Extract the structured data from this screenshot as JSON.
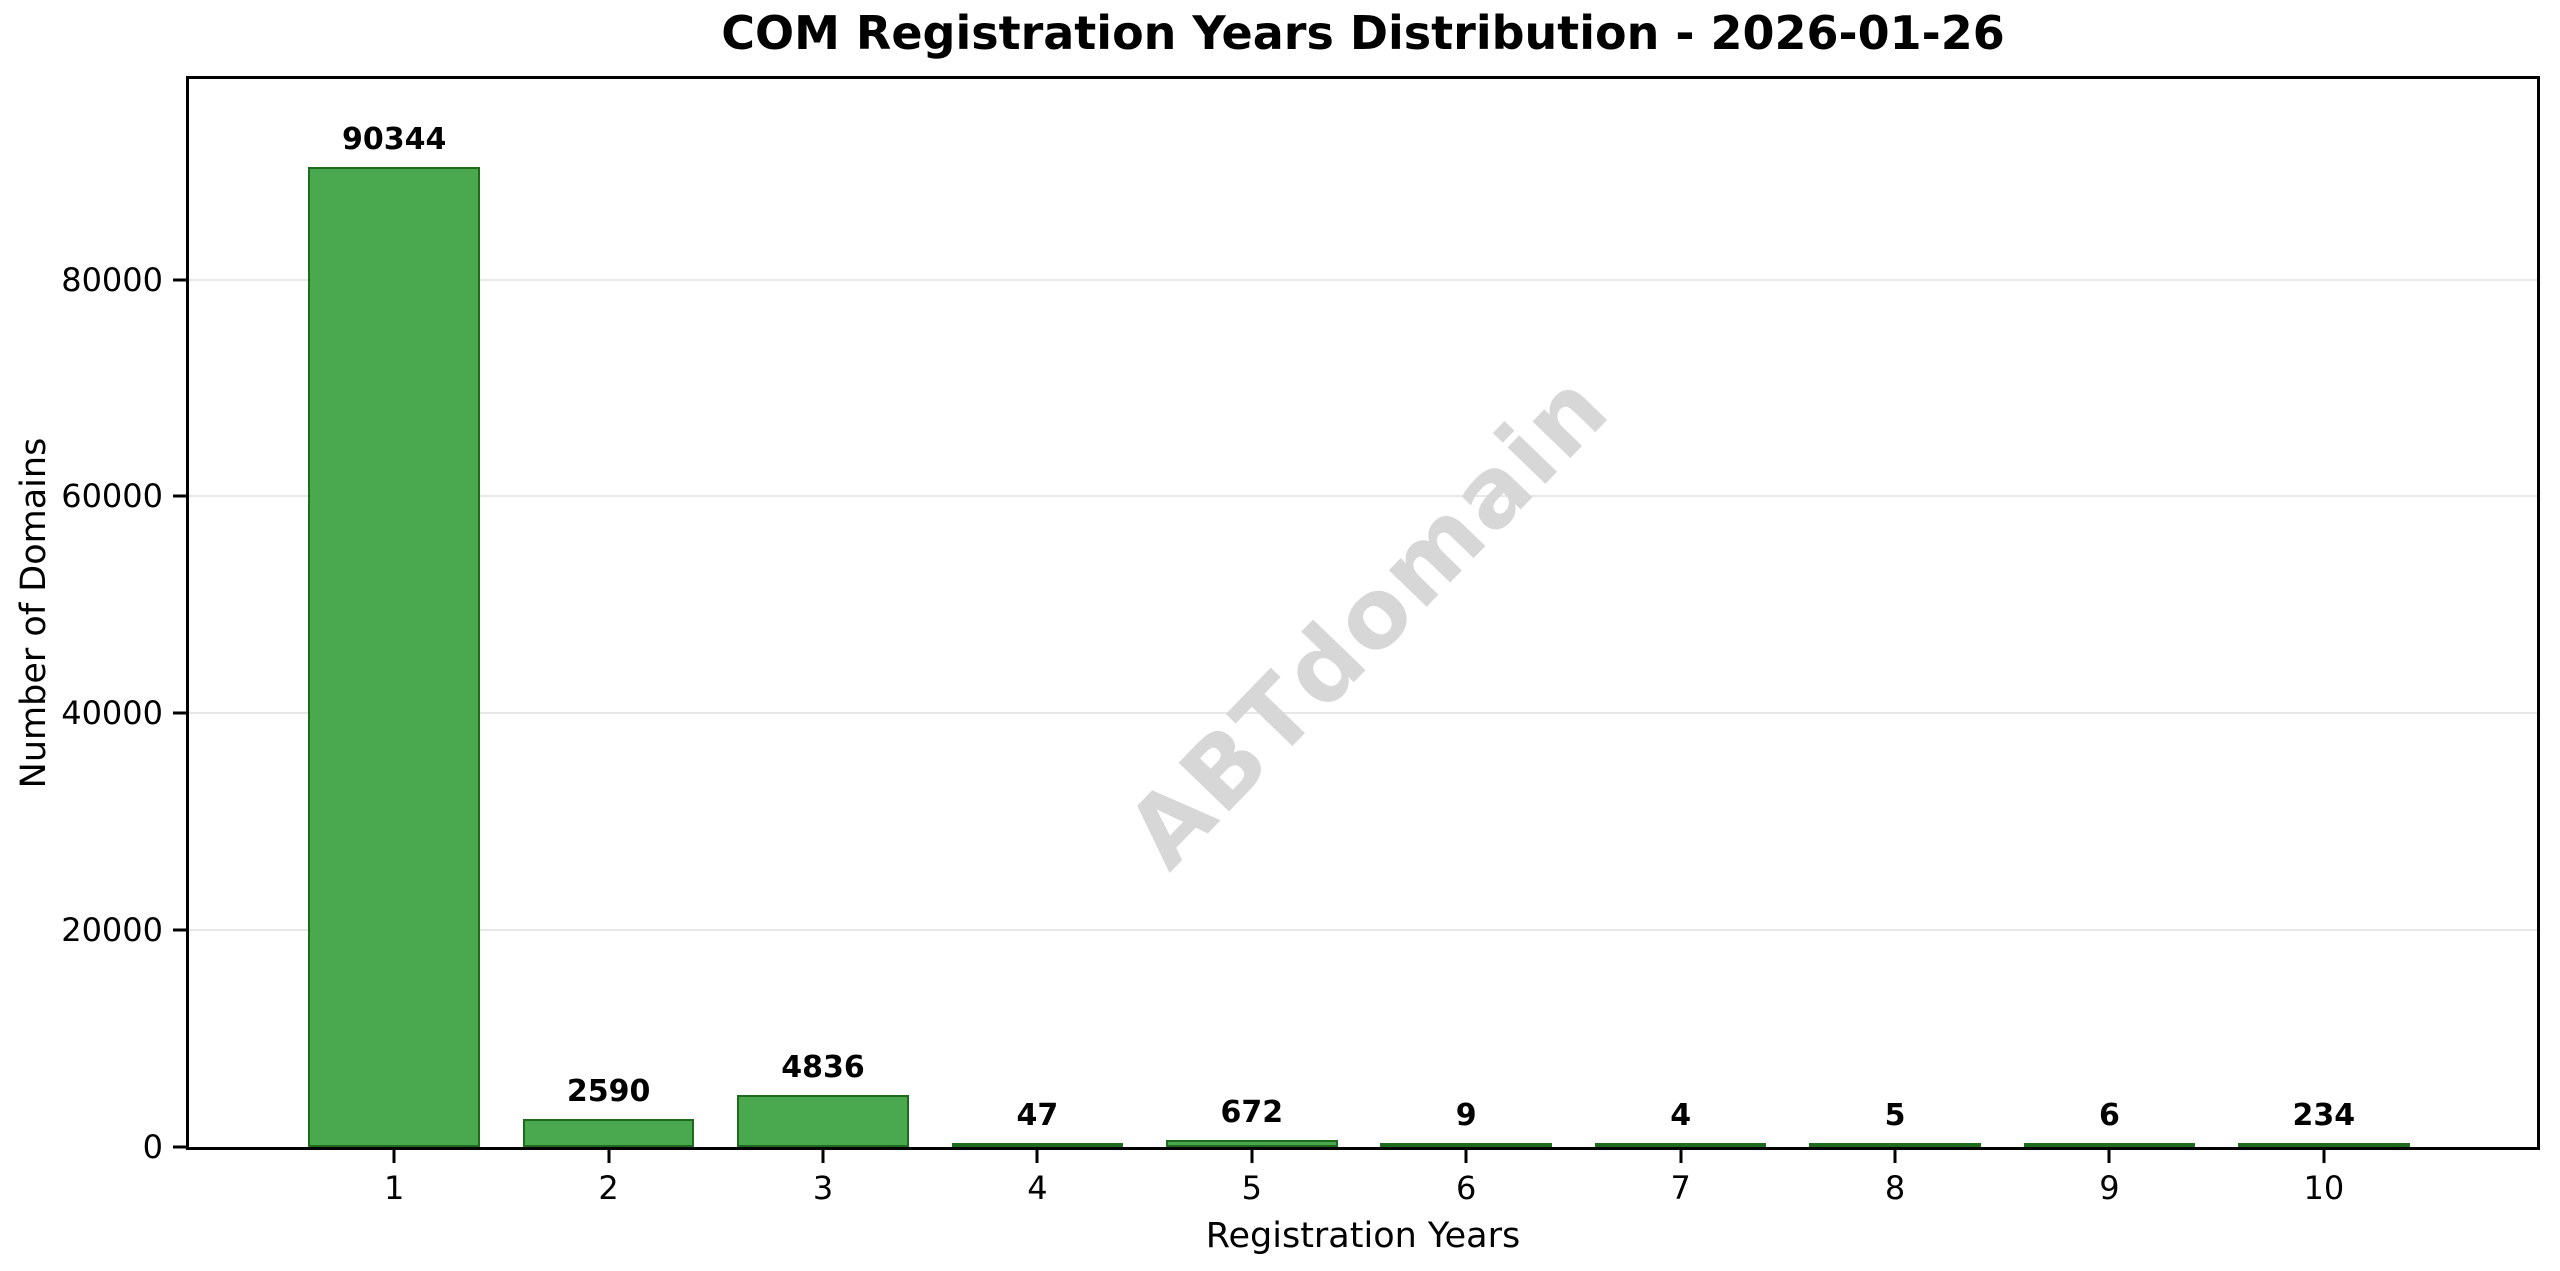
{
  "chart_data": {
    "type": "bar",
    "title": "COM Registration Years Distribution - 2026-01-26",
    "xlabel": "Registration Years",
    "ylabel": "Number of Domains",
    "categories": [
      "1",
      "2",
      "3",
      "4",
      "5",
      "6",
      "7",
      "8",
      "9",
      "10"
    ],
    "values": [
      90344,
      2590,
      4836,
      47,
      672,
      9,
      4,
      5,
      6,
      234
    ],
    "bar_labels": [
      "90344",
      "2590",
      "4836",
      "47",
      "672",
      "9",
      "4",
      "5",
      "6",
      "234"
    ],
    "yticks": [
      0,
      20000,
      40000,
      60000,
      80000
    ],
    "ytick_labels": [
      "0",
      "20000",
      "40000",
      "60000",
      "80000"
    ],
    "ylim": [
      0,
      98500
    ],
    "grid": "horizontal",
    "legend_position": "none",
    "watermark": "ABTdomain",
    "bar_color": "#4aa84f",
    "bar_edge_color": "#1e6b1e",
    "grid_color": "#e7e7e7",
    "spine_color": "#000000",
    "watermark_color": "#d7d7d7"
  }
}
